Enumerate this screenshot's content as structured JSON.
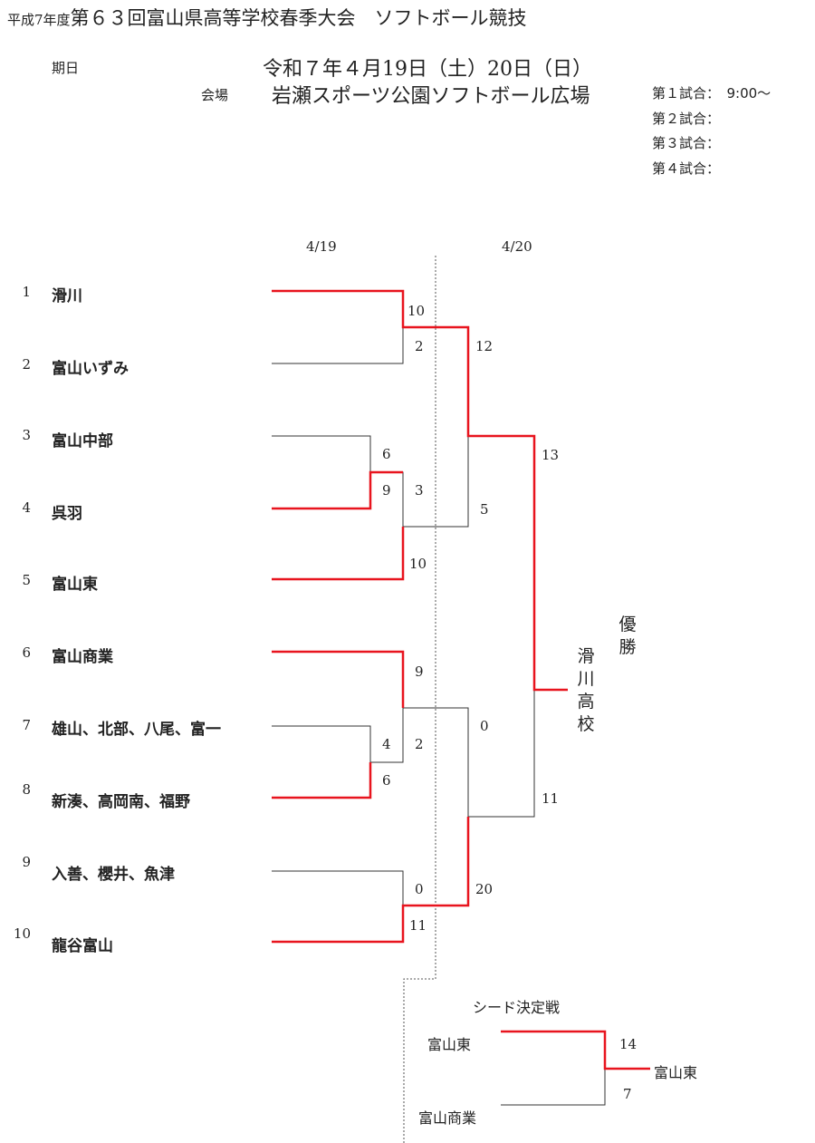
{
  "header": {
    "title_prefix": "平成7年度",
    "title_main": "第６３回富山県高等学校春季大会　ソフトボール競技",
    "date_label": "期日",
    "date_value": "令和７年４月19日（土）20日（日）",
    "venue_label": "会場",
    "venue_value": "岩瀬スポーツ公園ソフトボール広場",
    "games": [
      "第１試合：　9:00～",
      "第２試合：",
      "第３試合：",
      "第４試合："
    ]
  },
  "rounds": {
    "day1": "4/19",
    "day2": "4/20"
  },
  "teams": [
    {
      "no": "1",
      "name": "滑川"
    },
    {
      "no": "2",
      "name": "富山いずみ"
    },
    {
      "no": "3",
      "name": "富山中部"
    },
    {
      "no": "4",
      "name": "呉羽"
    },
    {
      "no": "5",
      "name": "富山東"
    },
    {
      "no": "6",
      "name": "富山商業"
    },
    {
      "no": "7",
      "name": "雄山、北部、八尾、富一"
    },
    {
      "no": "8",
      "name": "新湊、高岡南、福野"
    },
    {
      "no": "9",
      "name": "入善、櫻井、魚津"
    },
    {
      "no": "10",
      "name": "龍谷富山"
    }
  ],
  "scores": {
    "m1_top": "10",
    "m1_bot": "2",
    "m2_top": "6",
    "m2_bot": "9",
    "m3_top": "3",
    "m3_bot": "10",
    "m4_top": "4",
    "m4_bot": "6",
    "m5_top": "9",
    "m5_bot": "2",
    "m6_top": "0",
    "m6_bot": "11",
    "sf1_top": "12",
    "sf1_bot": "5",
    "sf2_top": "0",
    "sf2_bot": "20",
    "f_top": "13",
    "f_bot": "11"
  },
  "champion": {
    "label": "優勝",
    "name": "滑川高校"
  },
  "seed_playoff": {
    "title": "シード決定戦",
    "team_top": "富山東",
    "team_bottom": "富山商業",
    "score_top": "14",
    "score_bottom": "7",
    "winner": "富山東"
  },
  "colors": {
    "win": "#e8141e",
    "line": "#333333"
  }
}
